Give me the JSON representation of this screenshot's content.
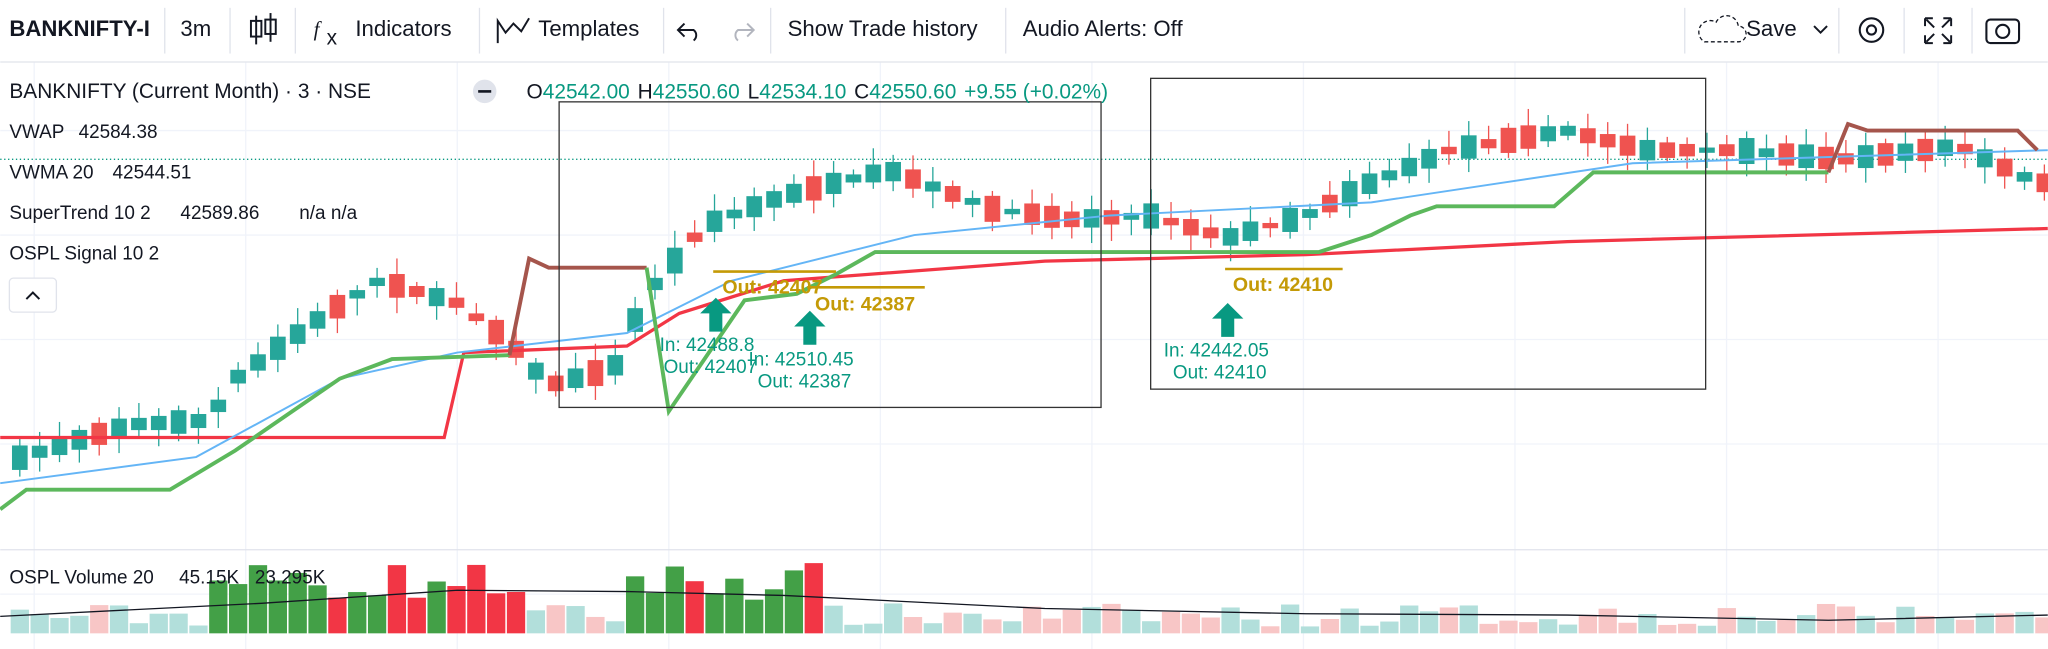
{
  "toolbar": {
    "symbol": "BANKNIFTY-I",
    "interval": "3m",
    "indicators": "Indicators",
    "templates": "Templates",
    "trade_history": "Show Trade history",
    "audio_alerts": "Audio Alerts: Off",
    "save": "Save"
  },
  "legend": {
    "title": "BANKNIFTY (Current Month) · 3 · NSE",
    "ohlc": [
      {
        "key": "O",
        "value": "42542.00"
      },
      {
        "key": "H",
        "value": "42550.60"
      },
      {
        "key": "L",
        "value": "42534.10"
      },
      {
        "key": "C",
        "value": "42550.60"
      }
    ],
    "change": "+9.55 (+0.02%)"
  },
  "indicators": [
    {
      "name": "VWAP",
      "value": "42584.38"
    },
    {
      "name": "VWMA 20",
      "value": "42544.51"
    },
    {
      "name": "SuperTrend 10 2",
      "value": "42589.86",
      "extra": "n/a n/a"
    },
    {
      "name": "OSPL Signal 10 2"
    }
  ],
  "annotations": {
    "out_levels": [
      "Out: 42407",
      "Out: 42387",
      "Out: 42410"
    ],
    "trades": [
      {
        "in": "In: 42488.8",
        "out": "Out: 42407"
      },
      {
        "in": "In: 42510.45",
        "out": "Out: 42387"
      },
      {
        "in": "In: 42442.05",
        "out": "Out: 42410"
      }
    ]
  },
  "volume": {
    "name": "OSPL Volume 20",
    "value1": "45.15K",
    "value2": "23.295K"
  }
}
